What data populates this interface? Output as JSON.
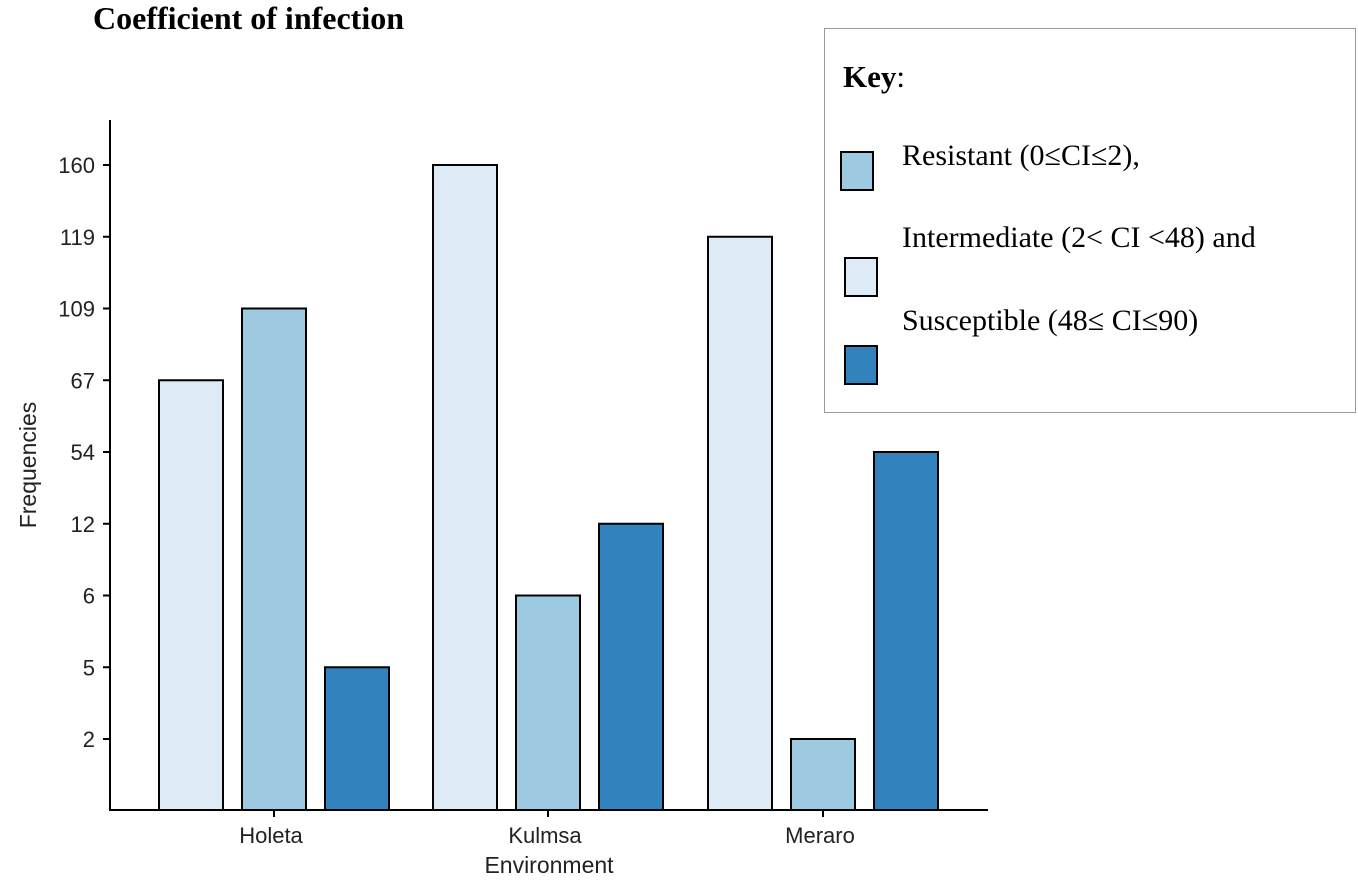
{
  "chart_data": {
    "type": "bar",
    "title": "Coefficient of infection",
    "xlabel": "Environment",
    "ylabel": "Frequencies",
    "categories": [
      "Holeta",
      "Kulmsa",
      "Meraro"
    ],
    "y_tick_labels": [
      "2",
      "5",
      "6",
      "12",
      "54",
      "67",
      "109",
      "119",
      "160"
    ],
    "y_scale": "categorical (equally spaced tick labels)",
    "series": [
      {
        "name": "Intermediate",
        "color": "#deebf7",
        "values": [
          67,
          160,
          119
        ]
      },
      {
        "name": "Resistant",
        "color": "#9ecae1",
        "values": [
          109,
          6,
          2
        ]
      },
      {
        "name": "Susceptible",
        "color": "#3182bd",
        "values": [
          5,
          12,
          54
        ]
      }
    ],
    "legend": {
      "title_bold": "Key",
      "title_rest": ":",
      "items": [
        {
          "label": "Resistant (0≤CI≤2),",
          "color": "#9ecae1"
        },
        {
          "label": "Intermediate (2< CI <48) and",
          "color": "#deebf7"
        },
        {
          "label": "Susceptible (48≤ CI≤90)",
          "color": "#3182bd"
        }
      ],
      "placement": "top-right"
    }
  }
}
